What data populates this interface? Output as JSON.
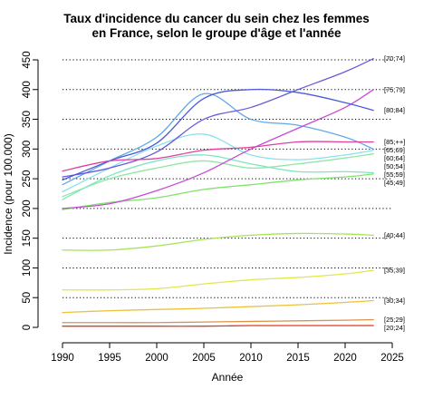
{
  "chart_data": {
    "type": "line",
    "title_lines": [
      "Taux d'incidence du cancer du sein chez les femmes",
      "en France, selon le groupe d'âge et l'année"
    ],
    "xlabel": "Année",
    "ylabel": "Incidence (pour 100.000)",
    "xlim": [
      1990,
      2025
    ],
    "ylim": [
      0,
      450
    ],
    "xticks": [
      1990,
      1995,
      2000,
      2005,
      2010,
      2015,
      2020,
      2025
    ],
    "yticks": [
      0,
      50,
      100,
      150,
      200,
      250,
      300,
      350,
      400,
      450
    ],
    "grid": "horizontal dotted at y ticks 50–450",
    "series": [
      {
        "name": "[20;24]",
        "color": "#e03a20",
        "x": [
          1990,
          1995,
          2000,
          2005,
          2010,
          2015,
          2020,
          2023
        ],
        "y": [
          2,
          2,
          2,
          2,
          3,
          3,
          3,
          3
        ]
      },
      {
        "name": "[25;29]",
        "color": "#d9954a",
        "x": [
          1990,
          1995,
          2000,
          2005,
          2010,
          2015,
          2020,
          2023
        ],
        "y": [
          8,
          8,
          8,
          9,
          10,
          11,
          12,
          13
        ]
      },
      {
        "name": "[30;34]",
        "color": "#ecc23c",
        "x": [
          1990,
          1995,
          2000,
          2005,
          2010,
          2015,
          2020,
          2023
        ],
        "y": [
          25,
          28,
          30,
          32,
          35,
          38,
          42,
          45
        ]
      },
      {
        "name": "[35;39]",
        "color": "#e1e84a",
        "x": [
          1990,
          1995,
          2000,
          2005,
          2010,
          2015,
          2020,
          2023
        ],
        "y": [
          63,
          63,
          65,
          73,
          80,
          84,
          90,
          96
        ]
      },
      {
        "name": "[40;44]",
        "color": "#a8e45a",
        "x": [
          1990,
          1995,
          2000,
          2005,
          2010,
          2015,
          2020,
          2023
        ],
        "y": [
          130,
          130,
          137,
          148,
          155,
          158,
          157,
          155
        ]
      },
      {
        "name": "[45;49]",
        "color": "#7fe46a",
        "x": [
          1990,
          1995,
          2000,
          2005,
          2010,
          2015,
          2020,
          2023
        ],
        "y": [
          198,
          210,
          218,
          232,
          240,
          248,
          253,
          258
        ]
      },
      {
        "name": "[50;54]",
        "color": "#8fe8a2",
        "x": [
          1990,
          1995,
          2000,
          2005,
          2010,
          2015,
          2020,
          2023
        ],
        "y": [
          220,
          250,
          268,
          280,
          268,
          275,
          285,
          292
        ]
      },
      {
        "name": "[55;59]",
        "color": "#7ee5c4",
        "x": [
          1990,
          1995,
          2000,
          2005,
          2010,
          2015,
          2020,
          2023
        ],
        "y": [
          215,
          255,
          280,
          290,
          275,
          262,
          262,
          260
        ]
      },
      {
        "name": "[60;64]",
        "color": "#8be0ee",
        "x": [
          1990,
          1995,
          2000,
          2005,
          2010,
          2015,
          2020,
          2023
        ],
        "y": [
          228,
          268,
          305,
          325,
          290,
          282,
          290,
          298
        ]
      },
      {
        "name": "[65;69]",
        "color": "#5fa8ea",
        "x": [
          1990,
          1995,
          2000,
          2005,
          2010,
          2015,
          2020,
          2023
        ],
        "y": [
          240,
          280,
          320,
          393,
          350,
          340,
          320,
          300
        ]
      },
      {
        "name": "[70;74]",
        "color": "#6a5cd8",
        "x": [
          1990,
          1995,
          2000,
          2005,
          2010,
          2015,
          2020,
          2023
        ],
        "y": [
          253,
          268,
          295,
          350,
          370,
          400,
          430,
          452
        ]
      },
      {
        "name": "[75;79]",
        "color": "#c64cd4",
        "x": [
          1990,
          1995,
          2000,
          2005,
          2010,
          2015,
          2020,
          2023
        ],
        "y": [
          200,
          208,
          230,
          260,
          300,
          335,
          370,
          400
        ]
      },
      {
        "name": "[80;84]",
        "color": "#4a5ad8",
        "x": [
          1990,
          1995,
          2000,
          2005,
          2010,
          2015,
          2020,
          2023
        ],
        "y": [
          248,
          280,
          310,
          385,
          400,
          395,
          378,
          365
        ]
      },
      {
        "name": "[85;++]",
        "color": "#e040a0",
        "x": [
          1990,
          1995,
          2000,
          2005,
          2010,
          2015,
          2020,
          2023
        ],
        "y": [
          263,
          280,
          284,
          298,
          303,
          312,
          312,
          312
        ]
      }
    ]
  }
}
